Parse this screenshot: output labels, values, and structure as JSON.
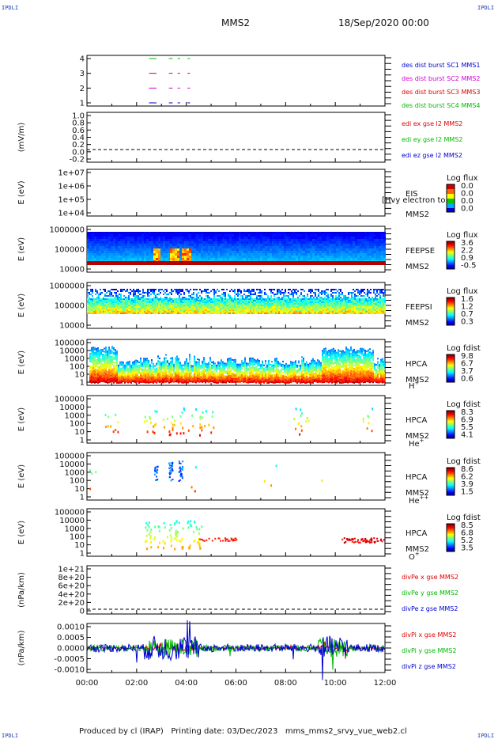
{
  "corner_label": "IPDLI",
  "header": {
    "probe": "MMS2",
    "datetime": "18/Sep/2020 00:00"
  },
  "footer": {
    "produced_by": "Produced by cl (IRAP)",
    "printing_date": "Printing date: 03/Dec/2023",
    "filename": "mms_mms2_srvy_vue_web2.cl"
  },
  "time_axis": {
    "labels": [
      "00:00",
      "02:00",
      "04:00",
      "06:00",
      "08:00",
      "10:00",
      "12:00"
    ],
    "range_hours": [
      0,
      12
    ]
  },
  "colors": {
    "red": "#e00000",
    "green": "#00b800",
    "blue": "#0000d0",
    "magenta": "#d000d0"
  },
  "panels": [
    {
      "id": "burst",
      "type": "timeline",
      "yticks": [
        "4",
        "3",
        "2",
        "1"
      ],
      "legend": [
        {
          "text": "des dist burst SC1 MMS1",
          "color": "blue"
        },
        {
          "text": "des dist burst SC2 MMS2",
          "color": "magenta"
        },
        {
          "text": "des dist burst SC3 MMS3",
          "color": "red"
        },
        {
          "text": "des dist burst SC4 MMS4",
          "color": "green"
        }
      ],
      "chart_data": {
        "type": "scatter",
        "x_unit": "hours",
        "series": [
          {
            "name": "des dist burst SC4 MMS4",
            "y": 4,
            "segments": [
              [
                2.5,
                2.8
              ],
              [
                3.3,
                3.45
              ],
              [
                3.65,
                3.75
              ],
              [
                4.05,
                4.15
              ]
            ]
          },
          {
            "name": "des dist burst SC3 MMS3",
            "y": 3,
            "segments": [
              [
                2.5,
                2.8
              ],
              [
                3.3,
                3.45
              ],
              [
                3.65,
                3.75
              ],
              [
                4.05,
                4.15
              ]
            ]
          },
          {
            "name": "des dist burst SC2 MMS2",
            "y": 2,
            "segments": [
              [
                2.5,
                2.8
              ],
              [
                3.3,
                3.45
              ],
              [
                3.65,
                3.75
              ],
              [
                4.05,
                4.15
              ]
            ]
          },
          {
            "name": "des dist burst SC1 MMS1",
            "y": 1,
            "segments": [
              [
                2.5,
                2.8
              ],
              [
                3.3,
                3.45
              ],
              [
                3.65,
                3.75
              ],
              [
                4.05,
                4.15
              ]
            ]
          }
        ]
      }
    },
    {
      "id": "edi",
      "type": "line",
      "ylabel": "(mV/m)",
      "yticks": [
        "1.0",
        "0.8",
        "0.6",
        "0.4",
        "0.2",
        "0.0",
        "-0.2"
      ],
      "legend": [
        {
          "text": "edi ex gse l2 MMS2",
          "color": "red"
        },
        {
          "text": "edi ey gse l2 MMS2",
          "color": "green"
        },
        {
          "text": "edi ez gse l2 MMS2",
          "color": "blue"
        }
      ],
      "chart_data": {
        "type": "line",
        "ylim": [
          -0.2,
          1.0
        ],
        "zero_line": 0.0,
        "series": []
      }
    },
    {
      "id": "eis",
      "type": "spectrogram",
      "ylabel": "E (eV)",
      "yticks": [
        "1e+07",
        "1e+06",
        "1e+05",
        "1e+04"
      ],
      "instrument": [
        "EIS",
        "MMS2"
      ],
      "overlay_text": "[Hvy electron to",
      "colorbar_title": "Log flux",
      "colorbar_ticks": [
        "0.0",
        "0.0",
        "0.0",
        "0.0"
      ],
      "chart_data": {
        "type": "heatmap",
        "ylim": [
          10000,
          10000000
        ],
        "log_y": true,
        "values": "no data"
      }
    },
    {
      "id": "feepse",
      "type": "spectrogram",
      "ylabel": "E (eV)",
      "yticks": [
        "1000000",
        "100000",
        "10000"
      ],
      "instrument": [
        "FEEPSE",
        "MMS2"
      ],
      "colorbar_title": "Log flux",
      "colorbar_ticks": [
        "3.6",
        "2.2",
        "0.9",
        "-0.5"
      ],
      "chart_data": {
        "type": "heatmap",
        "ylim": [
          10000,
          1000000
        ],
        "log_y": true,
        "clim": [
          -0.5,
          3.6
        ],
        "description_values": {
          "low_energy_band": "saturated red below ~40000 eV",
          "bursts_hours": [
            2.5,
            3.4,
            3.8
          ]
        }
      }
    },
    {
      "id": "feepsi",
      "type": "spectrogram",
      "ylabel": "E (eV)",
      "yticks": [
        "1000000",
        "100000",
        "10000"
      ],
      "instrument": [
        "FEEPSI",
        "MMS2"
      ],
      "colorbar_title": "Log flux",
      "colorbar_ticks": [
        "1.6",
        "1.2",
        "0.7",
        "0.3"
      ],
      "chart_data": {
        "type": "heatmap",
        "ylim": [
          10000,
          1000000
        ],
        "log_y": true,
        "clim": [
          0.3,
          1.6
        ]
      }
    },
    {
      "id": "hpca_h",
      "type": "spectrogram",
      "ylabel": "E (eV)",
      "yticks": [
        "100000",
        "10000",
        "1000",
        "100",
        "10",
        "1"
      ],
      "instrument": [
        "HPCA",
        "MMS2"
      ],
      "species": "H",
      "species_sup": "+",
      "colorbar_title": "Log fdist",
      "colorbar_ticks": [
        "9.8",
        "6.7",
        "3.7",
        "0.6"
      ],
      "chart_data": {
        "type": "heatmap",
        "ylim": [
          1,
          100000
        ],
        "log_y": true,
        "clim": [
          0.6,
          9.8
        ]
      }
    },
    {
      "id": "hpca_he",
      "type": "spectrogram",
      "ylabel": "E (eV)",
      "yticks": [
        "100000",
        "10000",
        "1000",
        "100",
        "10",
        "1"
      ],
      "instrument": [
        "HPCA",
        "MMS2"
      ],
      "species": "He",
      "species_sup": "+",
      "colorbar_title": "Log fdist",
      "colorbar_ticks": [
        "8.3",
        "6.9",
        "5.5",
        "4.1"
      ],
      "chart_data": {
        "type": "heatmap",
        "ylim": [
          1,
          100000
        ],
        "log_y": true,
        "clim": [
          4.1,
          8.3
        ]
      }
    },
    {
      "id": "hpca_hepp",
      "type": "spectrogram",
      "ylabel": "E (eV)",
      "yticks": [
        "100000",
        "10000",
        "1000",
        "100",
        "10",
        "1"
      ],
      "instrument": [
        "HPCA",
        "MMS2"
      ],
      "species": "He",
      "species_sup": "++",
      "colorbar_title": "Log fdist",
      "colorbar_ticks": [
        "8.6",
        "6.2",
        "3.9",
        "1.5"
      ],
      "chart_data": {
        "type": "heatmap",
        "ylim": [
          1,
          100000
        ],
        "log_y": true,
        "clim": [
          1.5,
          8.6
        ]
      }
    },
    {
      "id": "hpca_o",
      "type": "spectrogram",
      "ylabel": "E (eV)",
      "yticks": [
        "100000",
        "10000",
        "1000",
        "100",
        "10",
        "1"
      ],
      "instrument": [
        "HPCA",
        "MMS2"
      ],
      "species": "O",
      "species_sup": "+",
      "colorbar_title": "Log fdist",
      "colorbar_ticks": [
        "8.5",
        "6.8",
        "5.2",
        "3.5"
      ],
      "chart_data": {
        "type": "heatmap",
        "ylim": [
          1,
          100000
        ],
        "log_y": true,
        "clim": [
          3.5,
          8.5
        ]
      }
    },
    {
      "id": "divpe",
      "type": "line",
      "ylabel": "(nPa/km)",
      "yticks": [
        "1e+21",
        "8e+20",
        "6e+20",
        "4e+20",
        "2e+20",
        "0"
      ],
      "legend": [
        {
          "text": "divPe x gse MMS2",
          "color": "red"
        },
        {
          "text": "divPe y gse MMS2",
          "color": "green"
        },
        {
          "text": "divPe z gse MMS2",
          "color": "blue"
        }
      ],
      "chart_data": {
        "type": "line",
        "ylim": [
          0,
          1e+21
        ],
        "zero_line": 0,
        "series": []
      }
    },
    {
      "id": "divpi",
      "type": "line",
      "ylabel": "(nPa/km)",
      "yticks": [
        "0.0010",
        "0.0005",
        "0.0000",
        "-0.0005",
        "-0.0010"
      ],
      "legend": [
        {
          "text": "divPi x gse MMS2",
          "color": "red"
        },
        {
          "text": "divPi y gse MMS2",
          "color": "green"
        },
        {
          "text": "divPi z gse MMS2",
          "color": "blue"
        }
      ],
      "chart_data": {
        "type": "line",
        "ylim": [
          -0.0013,
          0.0013
        ],
        "series": [
          {
            "name": "divPi x gse MMS2",
            "noise": 5e-05
          },
          {
            "name": "divPi y gse MMS2",
            "noise": 0.00015
          },
          {
            "name": "divPi z gse MMS2",
            "noise": 0.0002
          }
        ]
      }
    }
  ]
}
